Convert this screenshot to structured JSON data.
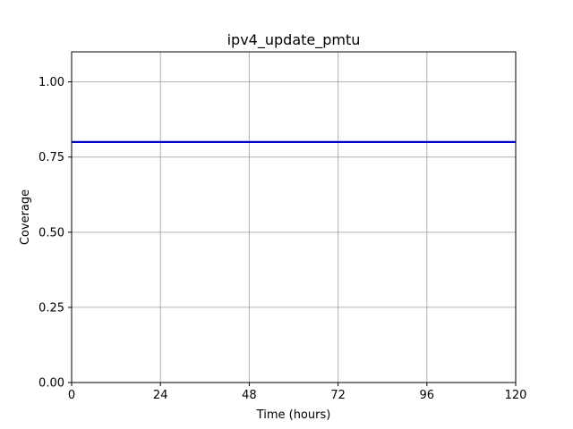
{
  "chart_data": {
    "type": "line",
    "title": "ipv4_update_pmtu",
    "xlabel": "Time (hours)",
    "ylabel": "Coverage",
    "xlim": [
      0,
      120
    ],
    "ylim": [
      0,
      1.1
    ],
    "xticks": [
      0,
      24,
      48,
      72,
      96,
      120
    ],
    "xtick_labels": [
      "0",
      "24",
      "48",
      "72",
      "96",
      "120"
    ],
    "yticks": [
      0,
      0.25,
      0.5,
      0.75,
      1.0
    ],
    "ytick_labels": [
      "0.00",
      "0.25",
      "0.50",
      "0.75",
      "1.00"
    ],
    "grid": true,
    "series": [
      {
        "color": "#0000cc",
        "x": [
          0,
          120
        ],
        "y": [
          0.8,
          0.8
        ]
      }
    ]
  }
}
